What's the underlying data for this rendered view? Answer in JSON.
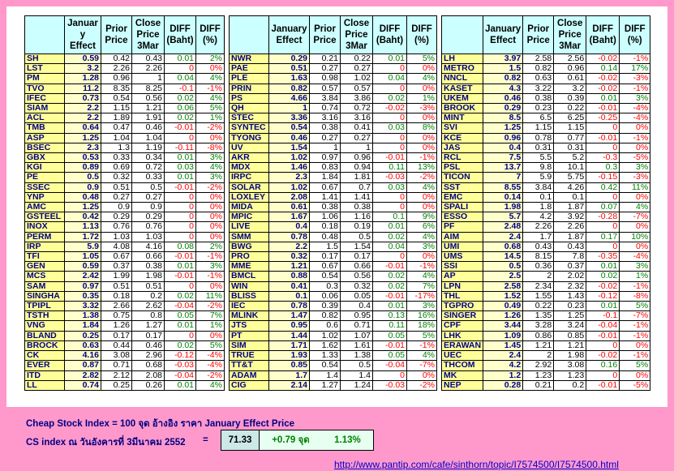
{
  "headers": {
    "effect": "January Effect",
    "effect_1": "Januar y Effect",
    "prior": "Prior Price",
    "close": "Close Price 3Mar",
    "diff_baht": "DIFF (Baht)",
    "diff_pct": "DIFF (%)"
  },
  "groups": [
    [
      [
        "SH",
        "0.59",
        "0.42",
        "0.43",
        "0.01",
        "2%"
      ],
      [
        "LST",
        "3.2",
        "2.26",
        "2.26",
        "0",
        "0%"
      ],
      [
        "PM",
        "1.28",
        "0.96",
        "1",
        "0.04",
        "4%"
      ],
      [
        "TVO",
        "11.2",
        "8.35",
        "8.25",
        "-0.1",
        "-1%"
      ],
      [
        "IFEC",
        "0.73",
        "0.54",
        "0.56",
        "0.02",
        "4%"
      ],
      [
        "SIAM",
        "2.2",
        "1.15",
        "1.21",
        "0.06",
        "5%"
      ],
      [
        "ACL",
        "2.2",
        "1.89",
        "1.91",
        "0.02",
        "1%"
      ],
      [
        "TMB",
        "0.64",
        "0.47",
        "0.46",
        "-0.01",
        "-2%"
      ],
      [
        "ASP",
        "1.25",
        "1.04",
        "1.04",
        "0",
        "0%"
      ],
      [
        "BSEC",
        "2.3",
        "1.3",
        "1.19",
        "-0.11",
        "-8%"
      ],
      [
        "GBX",
        "0.53",
        "0.33",
        "0.34",
        "0.01",
        "3%"
      ],
      [
        "KGI",
        "0.89",
        "0.69",
        "0.72",
        "0.03",
        "4%"
      ],
      [
        "PE",
        "0.5",
        "0.32",
        "0.33",
        "0.01",
        "3%"
      ],
      [
        "SSEC",
        "0.9",
        "0.51",
        "0.5",
        "-0.01",
        "-2%"
      ],
      [
        "YNP",
        "0.48",
        "0.27",
        "0.27",
        "0",
        "0%"
      ],
      [
        "AMC",
        "1.25",
        "0.9",
        "0.9",
        "0",
        "0%"
      ],
      [
        "GSTEEL",
        "0.42",
        "0.29",
        "0.29",
        "0",
        "0%"
      ],
      [
        "INOX",
        "1.13",
        "0.76",
        "0.76",
        "0",
        "0%"
      ],
      [
        "PERM",
        "1.72",
        "1.03",
        "1.03",
        "0",
        "0%"
      ],
      [
        "IRP",
        "5.9",
        "4.08",
        "4.16",
        "0.08",
        "2%"
      ],
      [
        "TFI",
        "1.05",
        "0.67",
        "0.66",
        "-0.01",
        "-1%"
      ],
      [
        "GEN",
        "0.59",
        "0.37",
        "0.38",
        "0.01",
        "3%"
      ],
      [
        "MCS",
        "2.42",
        "1.99",
        "1.98",
        "-0.01",
        "-1%"
      ],
      [
        "SAM",
        "0.97",
        "0.51",
        "0.51",
        "0",
        "0%"
      ],
      [
        "SINGHA",
        "0.35",
        "0.18",
        "0.2",
        "0.02",
        "11%"
      ],
      [
        "TPIPL",
        "3.32",
        "2.66",
        "2.62",
        "-0.04",
        "-2%"
      ],
      [
        "TSTH",
        "1.38",
        "0.75",
        "0.8",
        "0.05",
        "7%"
      ],
      [
        "VNG",
        "1.84",
        "1.26",
        "1.27",
        "0.01",
        "1%"
      ],
      [
        "BLAND",
        "0.25",
        "0.17",
        "0.17",
        "0",
        "0%"
      ],
      [
        "BROCK",
        "0.63",
        "0.44",
        "0.46",
        "0.02",
        "5%"
      ],
      [
        "CK",
        "4.16",
        "3.08",
        "2.96",
        "-0.12",
        "-4%"
      ],
      [
        "EVER",
        "0.87",
        "0.71",
        "0.68",
        "-0.03",
        "-4%"
      ],
      [
        "ITD",
        "2.82",
        "2.12",
        "2.08",
        "-0.04",
        "-2%"
      ],
      [
        "LL",
        "0.74",
        "0.25",
        "0.26",
        "0.01",
        "4%"
      ]
    ],
    [
      [
        "NWR",
        "0.29",
        "0.21",
        "0.22",
        "0.01",
        "5%"
      ],
      [
        "PAE",
        "0.51",
        "0.27",
        "0.27",
        "0",
        "0%"
      ],
      [
        "PLE",
        "1.63",
        "0.98",
        "1.02",
        "0.04",
        "4%"
      ],
      [
        "PRIN",
        "0.82",
        "0.57",
        "0.57",
        "0",
        "0%"
      ],
      [
        "PS",
        "4.66",
        "3.84",
        "3.86",
        "0.02",
        "1%"
      ],
      [
        "QH",
        "1",
        "0.74",
        "0.72",
        "-0.02",
        "-3%"
      ],
      [
        "STEC",
        "3.36",
        "3.16",
        "3.16",
        "0",
        "0%"
      ],
      [
        "SYNTEC",
        "0.54",
        "0.38",
        "0.41",
        "0.03",
        "8%"
      ],
      [
        "TYONG",
        "0.46",
        "0.27",
        "0.27",
        "0",
        "0%"
      ],
      [
        "UV",
        "1.54",
        "1",
        "1",
        "0",
        "0%"
      ],
      [
        "AKR",
        "1.02",
        "0.97",
        "0.96",
        "-0.01",
        "-1%"
      ],
      [
        "MDX",
        "1.46",
        "0.83",
        "0.94",
        "0.11",
        "13%"
      ],
      [
        "IRPC",
        "2.3",
        "1.84",
        "1.81",
        "-0.03",
        "-2%"
      ],
      [
        "SOLAR",
        "1.02",
        "0.67",
        "0.7",
        "0.03",
        "4%"
      ],
      [
        "LOXLEY",
        "2.08",
        "1.41",
        "1.41",
        "0",
        "0%"
      ],
      [
        "MIDA",
        "0.61",
        "0.38",
        "0.38",
        "0",
        "0%"
      ],
      [
        "MPIC",
        "1.67",
        "1.06",
        "1.16",
        "0.1",
        "9%"
      ],
      [
        "LIVE",
        "0.4",
        "0.18",
        "0.19",
        "0.01",
        "6%"
      ],
      [
        "SMM",
        "0.78",
        "0.48",
        "0.5",
        "0.02",
        "4%"
      ],
      [
        "BWG",
        "2.2",
        "1.5",
        "1.54",
        "0.04",
        "3%"
      ],
      [
        "PRO",
        "0.32",
        "0.17",
        "0.17",
        "0",
        "0%"
      ],
      [
        "MME",
        "1.21",
        "0.67",
        "0.66",
        "-0.01",
        "-1%"
      ],
      [
        "BMCL",
        "0.88",
        "0.54",
        "0.56",
        "0.02",
        "4%"
      ],
      [
        "WIN",
        "0.41",
        "0.3",
        "0.32",
        "0.02",
        "7%"
      ],
      [
        "BLISS",
        "0.1",
        "0.06",
        "0.05",
        "-0.01",
        "-17%"
      ],
      [
        "IEC",
        "0.78",
        "0.39",
        "0.4",
        "0.01",
        "3%"
      ],
      [
        "MLINK",
        "1.47",
        "0.82",
        "0.95",
        "0.13",
        "16%"
      ],
      [
        "JTS",
        "0.95",
        "0.6",
        "0.71",
        "0.11",
        "18%"
      ],
      [
        "PT",
        "1.44",
        "1.02",
        "1.07",
        "0.05",
        "5%"
      ],
      [
        "SIM",
        "1.71",
        "1.62",
        "1.61",
        "-0.01",
        "-1%"
      ],
      [
        "TRUE",
        "1.93",
        "1.33",
        "1.38",
        "0.05",
        "4%"
      ],
      [
        "TT&T",
        "0.85",
        "0.54",
        "0.5",
        "-0.04",
        "-7%"
      ],
      [
        "ADAM",
        "1.7",
        "1.4",
        "1.4",
        "0",
        "0%"
      ],
      [
        "CIG",
        "2.14",
        "1.27",
        "1.24",
        "-0.03",
        "-2%"
      ]
    ],
    [
      [
        "LH",
        "3.97",
        "2.58",
        "2.56",
        "-0.02",
        "-1%"
      ],
      [
        "METRO",
        "1.5",
        "0.82",
        "0.96",
        "0.14",
        "17%"
      ],
      [
        "NNCL",
        "0.82",
        "0.63",
        "0.61",
        "-0.02",
        "-3%"
      ],
      [
        "KASET",
        "4.3",
        "3.22",
        "3.2",
        "-0.02",
        "-1%"
      ],
      [
        "UKEM",
        "0.46",
        "0.38",
        "0.39",
        "0.01",
        "3%"
      ],
      [
        "BROOK",
        "0.29",
        "0.23",
        "0.22",
        "-0.01",
        "-4%"
      ],
      [
        "MINT",
        "8.5",
        "6.5",
        "6.25",
        "-0.25",
        "-4%"
      ],
      [
        "SVI",
        "1.25",
        "1.15",
        "1.15",
        "0",
        "0%"
      ],
      [
        "KCE",
        "0.96",
        "0.78",
        "0.77",
        "-0.01",
        "-1%"
      ],
      [
        "JAS",
        "0.4",
        "0.31",
        "0.31",
        "0",
        "0%"
      ],
      [
        "RCL",
        "7.5",
        "5.5",
        "5.2",
        "-0.3",
        "-5%"
      ],
      [
        "PSL",
        "13.7",
        "9.8",
        "10.1",
        "0.3",
        "3%"
      ],
      [
        "TICON",
        "7",
        "5.9",
        "5.75",
        "-0.15",
        "-3%"
      ],
      [
        "SST",
        "8.55",
        "3.84",
        "4.26",
        "0.42",
        "11%"
      ],
      [
        "EMC",
        "0.14",
        "0.1",
        "0.1",
        "0",
        "0%"
      ],
      [
        "SPALI",
        "1.98",
        "1.8",
        "1.87",
        "0.07",
        "4%"
      ],
      [
        "ESSO",
        "5.7",
        "4.2",
        "3.92",
        "-0.28",
        "-7%"
      ],
      [
        "PF",
        "2.48",
        "2.26",
        "2.26",
        "0",
        "0%"
      ],
      [
        "AIM",
        "2.4",
        "1.7",
        "1.87",
        "0.17",
        "10%"
      ],
      [
        "UMI",
        "0.68",
        "0.43",
        "0.43",
        "0",
        "0%"
      ],
      [
        "UMS",
        "14.5",
        "8.15",
        "7.8",
        "-0.35",
        "-4%"
      ],
      [
        "SSI",
        "0.5",
        "0.36",
        "0.37",
        "0.01",
        "3%"
      ],
      [
        "AP",
        "2.5",
        "2",
        "2.02",
        "0.02",
        "1%"
      ],
      [
        "LPN",
        "2.58",
        "2.34",
        "2.32",
        "-0.02",
        "-1%"
      ],
      [
        "THL",
        "1.52",
        "1.55",
        "1.43",
        "-0.12",
        "-8%"
      ],
      [
        "TGPRO",
        "0.49",
        "0.22",
        "0.23",
        "0.01",
        "5%"
      ],
      [
        "SINGER",
        "1.26",
        "1.35",
        "1.25",
        "-0.1",
        "-7%"
      ],
      [
        "CPF",
        "3.44",
        "3.28",
        "3.24",
        "-0.04",
        "-1%"
      ],
      [
        "LHK",
        "1.09",
        "0.86",
        "0.85",
        "-0.01",
        "-1%"
      ],
      [
        "ERAWAN",
        "1.45",
        "1.21",
        "1.21",
        "0",
        "0%"
      ],
      [
        "UEC",
        "2.4",
        "2",
        "1.98",
        "-0.02",
        "-1%"
      ],
      [
        "THCOM",
        "4.2",
        "2.92",
        "3.08",
        "0.16",
        "5%"
      ],
      [
        "MK",
        "1.2",
        "1.23",
        "1.23",
        "0",
        "0%"
      ],
      [
        "NEP",
        "0.28",
        "0.21",
        "0.2",
        "-0.01",
        "-5%"
      ]
    ]
  ],
  "footer": {
    "title": "Cheap Stock Index = 100 จุด อ้างอิง ราคา January Effect Price",
    "index_label": "CS index ณ วันอังคารที่ 3มีนาคม  2552",
    "equals": "=",
    "index_value": "71.33",
    "change_points": "+0.79 จุด",
    "change_pct": "1.13%"
  },
  "url": "http://www.pantip.com/cafe/sinthorn/topic/I7574500/I7574500.html",
  "colors": {
    "background": "#ff99cc",
    "header": "#ccffff",
    "symbol": "#ffff99",
    "positive": "#008000",
    "negative": "#ff0000"
  }
}
